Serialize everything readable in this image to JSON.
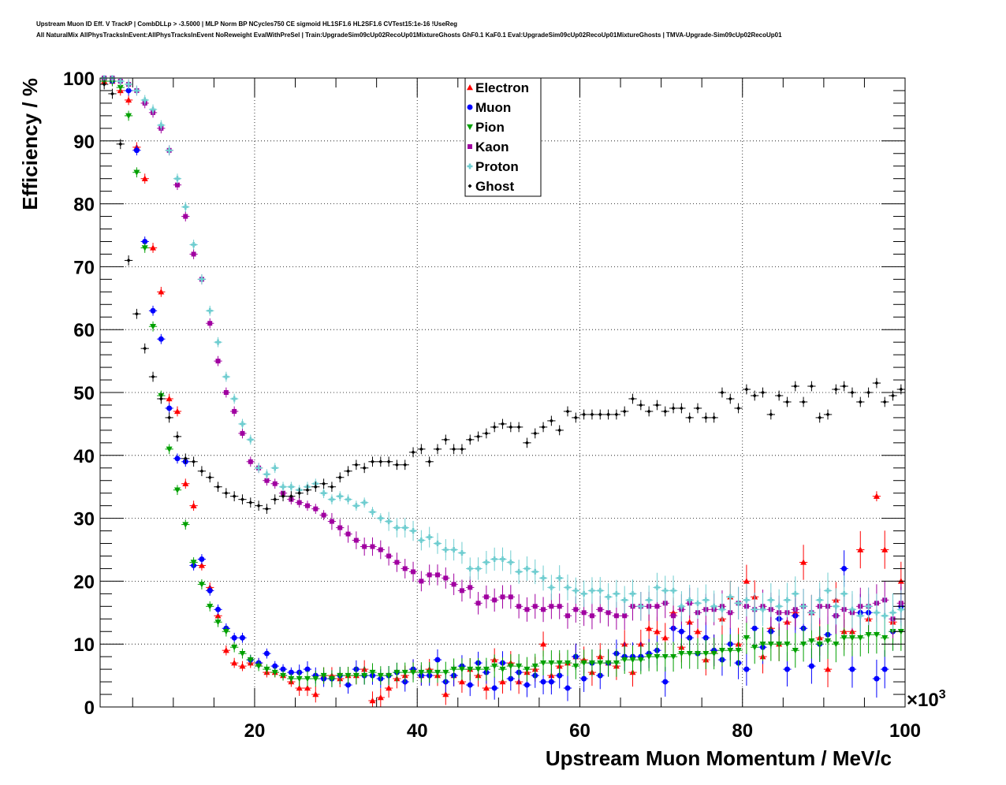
{
  "header": {
    "line1": "Upstream Muon ID Eff. V TrackP | CombDLLp > -3.5000 | MLP Norm BP NCycles750 CE sigmoid HL1SF1.6 HL2SF1.6 CVTest15:1e-16 !UseReg",
    "line2": "All NaturalMix AllPhysTracksInEvent:AllPhysTracksInEvent NoReweight EvalWithPreSel | Train:UpgradeSim09cUp02RecoUp01MixtureGhosts GhF0.1 KaF0.1 Eval:UpgradeSim09cUp02RecoUp01MixtureGhosts | TMVA-Upgrade-Sim09cUp02RecoUp01"
  },
  "chart_data": {
    "type": "scatter",
    "xlabel": "Upstream Muon Momentum / MeV/c",
    "ylabel": "Efficiency / %",
    "x_exponent": "×10",
    "x_exponent_power": "3",
    "xlim": [
      1,
      100
    ],
    "ylim": [
      0,
      100
    ],
    "x_ticks": [
      20,
      40,
      60,
      80,
      100
    ],
    "y_ticks": [
      0,
      10,
      20,
      30,
      40,
      50,
      60,
      70,
      80,
      90,
      100
    ],
    "grid": true,
    "legend_position": "top-center",
    "x": [
      1.5,
      2.5,
      3.5,
      4.5,
      5.5,
      6.5,
      7.5,
      8.5,
      9.5,
      10.5,
      11.5,
      12.5,
      13.5,
      14.5,
      15.5,
      16.5,
      17.5,
      18.5,
      19.5,
      20.5,
      21.5,
      22.5,
      23.5,
      24.5,
      25.5,
      26.5,
      27.5,
      28.5,
      29.5,
      30.5,
      31.5,
      32.5,
      33.5,
      34.5,
      35.5,
      36.5,
      37.5,
      38.5,
      39.5,
      40.5,
      41.5,
      42.5,
      43.5,
      44.5,
      45.5,
      46.5,
      47.5,
      48.5,
      49.5,
      50.5,
      51.5,
      52.5,
      53.5,
      54.5,
      55.5,
      56.5,
      57.5,
      58.5,
      59.5,
      60.5,
      61.5,
      62.5,
      63.5,
      64.5,
      65.5,
      66.5,
      67.5,
      68.5,
      69.5,
      70.5,
      71.5,
      72.5,
      73.5,
      74.5,
      75.5,
      76.5,
      77.5,
      78.5,
      79.5,
      80.5,
      81.5,
      82.5,
      83.5,
      84.5,
      85.5,
      86.5,
      87.5,
      88.5,
      89.5,
      90.5,
      91.5,
      92.5,
      93.5,
      94.5,
      95.5,
      96.5,
      97.5,
      98.5,
      99.5
    ],
    "series": [
      {
        "name": "Electron",
        "marker": "triangle-up",
        "color": "#ff0000",
        "values": [
          99.5,
          99.5,
          98,
          96.5,
          89,
          84,
          73,
          66,
          49,
          47,
          35.5,
          32,
          22.5,
          19,
          14.5,
          9,
          7,
          6.5,
          7,
          7,
          5.5,
          5.5,
          5,
          4,
          3,
          3,
          2,
          5,
          5,
          4.5,
          5,
          5,
          6,
          1,
          1.5,
          3,
          4.5,
          5,
          6,
          5,
          6,
          5,
          2,
          5,
          4,
          6,
          5,
          3,
          7.5,
          4,
          7,
          4,
          5.5,
          6,
          10,
          5,
          6.5,
          7,
          8,
          7.5,
          5.5,
          8,
          7,
          6.5,
          10,
          5.5,
          10,
          12.5,
          12,
          11,
          15,
          9.5,
          13.5,
          12,
          7.5,
          9,
          14,
          17.5,
          10,
          20,
          17.5,
          8,
          12.5,
          10,
          13.5,
          15,
          23,
          15,
          11,
          6,
          17,
          12,
          12,
          25,
          14,
          33.5,
          25,
          13.5,
          20
        ]
      },
      {
        "name": "Muon",
        "marker": "circle",
        "color": "#0000ff",
        "values": [
          100,
          99.5,
          99.5,
          98,
          88.5,
          74,
          63,
          58.5,
          47.5,
          39.5,
          39,
          22.5,
          23.5,
          18.5,
          15.5,
          12.5,
          11,
          11,
          7.5,
          7,
          8.5,
          6.5,
          6,
          5.5,
          5.5,
          6,
          5,
          4.5,
          4.5,
          5,
          3.5,
          6,
          5,
          5,
          4.5,
          5,
          5.5,
          4,
          6,
          5,
          5,
          7.5,
          4,
          5,
          6.5,
          3.5,
          7,
          5.5,
          3,
          7,
          4.5,
          5.5,
          3.5,
          5,
          4,
          4,
          5,
          3,
          8,
          4.5,
          7,
          5,
          7,
          8.5,
          8,
          8,
          8,
          8.5,
          9,
          4,
          12.5,
          12,
          11,
          8.5,
          11,
          9,
          7.5,
          10,
          7,
          6,
          12.5,
          9.5,
          12,
          14,
          6,
          14.5,
          12.5,
          6.5,
          10,
          11.5,
          14.5,
          22,
          6,
          15,
          15,
          4.5,
          6,
          12,
          16
        ]
      },
      {
        "name": "Pion",
        "marker": "triangle-down",
        "color": "#00a000",
        "values": [
          99.5,
          99.5,
          98.5,
          94,
          85,
          73,
          60.5,
          49.5,
          41,
          34.5,
          29,
          23,
          19.5,
          16,
          13.5,
          12,
          9.5,
          8.5,
          7.5,
          6.5,
          6,
          5.5,
          5,
          4.5,
          4.5,
          4.5,
          4.5,
          5,
          4.5,
          5,
          5,
          5,
          5,
          5.5,
          5,
          5,
          5.5,
          5.5,
          5.5,
          5.5,
          5.5,
          5.5,
          5.5,
          6,
          6,
          6,
          6,
          6,
          6.5,
          6,
          6.5,
          6.5,
          6,
          6.5,
          7,
          7,
          7,
          7,
          6.5,
          7,
          7,
          7,
          7,
          7,
          7.5,
          7.5,
          7.5,
          8,
          8,
          8,
          8,
          8.5,
          8.5,
          8.5,
          8.5,
          8.5,
          9,
          9,
          9,
          11,
          9.5,
          10,
          10,
          10,
          10,
          9,
          10,
          10.5,
          10,
          10.5,
          10,
          11,
          11,
          11,
          11.5,
          11.5,
          11,
          12,
          12
        ]
      },
      {
        "name": "Kaon",
        "marker": "square",
        "color": "#a000a0",
        "values": [
          100,
          100,
          99.5,
          99,
          98,
          96,
          94.5,
          92,
          88.5,
          83,
          78,
          72,
          68,
          61,
          55,
          50,
          47,
          43.5,
          39,
          38,
          36,
          35.5,
          34,
          33,
          32.5,
          32,
          31.5,
          30.5,
          29.5,
          28.5,
          27.5,
          26.5,
          25.5,
          25.5,
          25,
          24,
          23,
          22,
          21.5,
          20,
          21,
          21,
          20.5,
          19.5,
          18.5,
          19,
          16.5,
          17.5,
          17,
          17.5,
          17.5,
          16,
          15.5,
          16,
          15.5,
          16,
          16,
          14.5,
          15.5,
          15,
          14.5,
          15.5,
          15,
          14.5,
          14.5,
          16,
          16,
          16,
          16,
          16.5,
          14.5,
          15.5,
          16.5,
          15,
          15.5,
          15.5,
          16,
          15,
          16.5,
          16,
          15.5,
          16,
          15.5,
          15,
          15,
          15.5,
          16,
          15,
          16,
          16,
          14.5,
          15.5,
          15,
          16,
          16,
          16.5,
          17,
          14,
          16.5
        ]
      },
      {
        "name": "Proton",
        "marker": "cross",
        "color": "#6fcdd0",
        "values": [
          100,
          100,
          99.5,
          99,
          98,
          96.5,
          95,
          92.5,
          88.5,
          84,
          79.5,
          73.5,
          68,
          63,
          58,
          52.5,
          49,
          45,
          42.5,
          38,
          37,
          38,
          35,
          35,
          34.5,
          35,
          35.5,
          34,
          33,
          33.5,
          33,
          32,
          32.5,
          31,
          30,
          29.5,
          28.5,
          28.5,
          28,
          26.5,
          27,
          26,
          25,
          25,
          24.5,
          22,
          22,
          23,
          23.5,
          23.5,
          23,
          21.5,
          22,
          21.5,
          20.5,
          19,
          20.5,
          19,
          18.5,
          18,
          18.5,
          18.5,
          17.5,
          18,
          17,
          18,
          16,
          17,
          19,
          18.5,
          18.5,
          16,
          17,
          16.5,
          17,
          16,
          15.5,
          17.5,
          16.5,
          17,
          15.5,
          15.5,
          17,
          16,
          17,
          18,
          16,
          15,
          17,
          18.5,
          16,
          18,
          15.5,
          14.5,
          16,
          15,
          14.5,
          15,
          15.5
        ]
      },
      {
        "name": "Ghost",
        "marker": "diamond",
        "color": "#000000",
        "values": [
          99,
          97.5,
          89.5,
          71,
          62.5,
          57,
          52.5,
          49,
          46,
          43,
          39.5,
          39,
          37.5,
          36.5,
          35,
          34,
          33.5,
          33,
          32.5,
          32,
          31.5,
          33,
          33.5,
          33.5,
          34,
          34.5,
          35,
          35.5,
          35,
          36.5,
          37.5,
          38.5,
          38,
          39,
          39,
          39,
          38.5,
          38.5,
          40.5,
          41,
          39,
          41,
          42.5,
          41,
          41,
          42.5,
          43,
          43.5,
          44.5,
          45,
          44.5,
          44.5,
          42,
          43.5,
          44.5,
          45.5,
          44,
          47,
          46,
          46.5,
          46.5,
          46.5,
          46.5,
          46.5,
          47,
          49,
          48,
          47,
          48,
          47,
          47.5,
          47.5,
          46,
          47.5,
          46,
          46,
          50,
          49,
          47.5,
          50.5,
          49.5,
          50,
          46.5,
          49.5,
          48.5,
          51,
          48.5,
          51,
          46,
          46.5,
          50.5,
          51,
          50,
          48.5,
          50,
          51.5,
          48.5,
          49.5,
          50.5
        ]
      }
    ]
  }
}
